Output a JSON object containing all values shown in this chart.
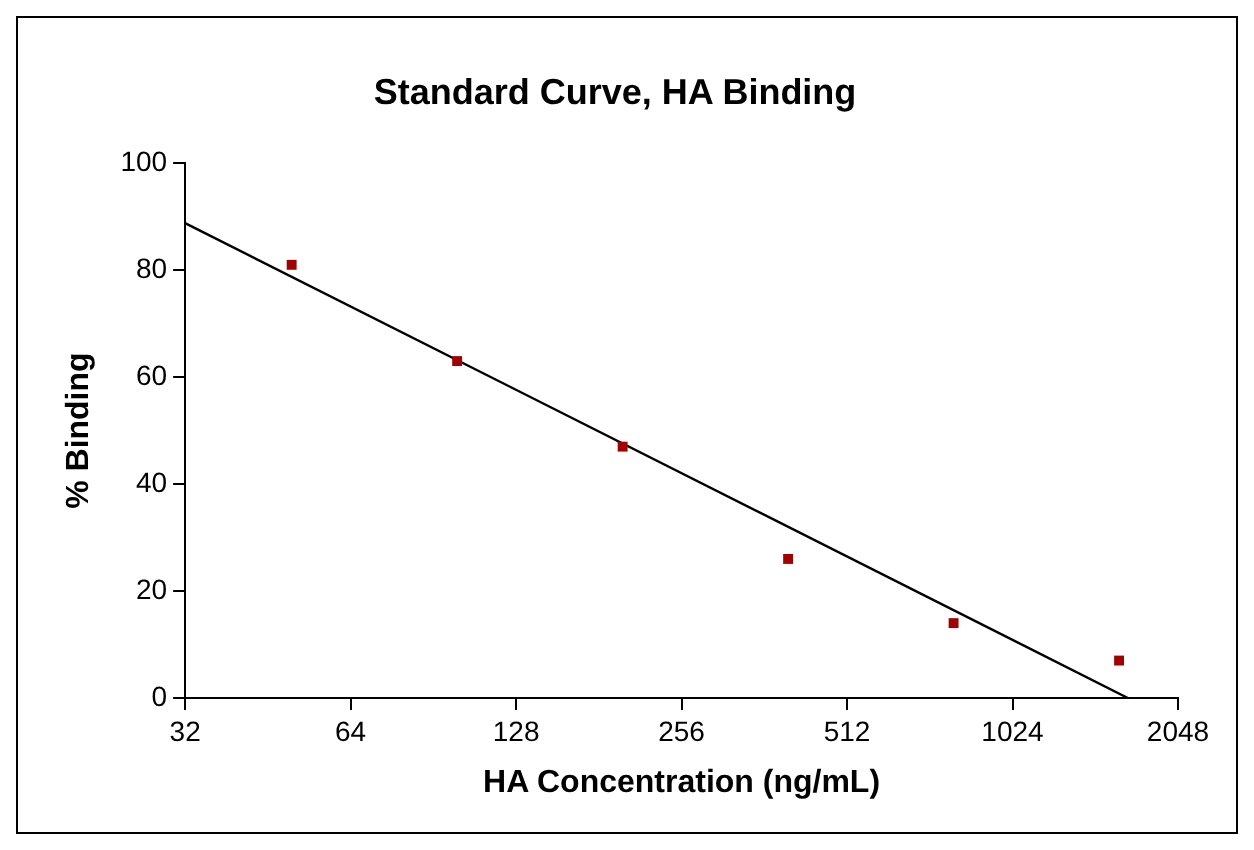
{
  "chart_data": {
    "type": "scatter",
    "title": "Standard Curve, HA Binding",
    "xlabel": "HA Concentration (ng/mL)",
    "ylabel": "% Binding",
    "log": "x",
    "xlim": [
      32,
      2048
    ],
    "xticks": [
      32,
      64,
      128,
      256,
      512,
      1024,
      2048
    ],
    "ylim": [
      0,
      100
    ],
    "yticks": [
      0,
      20,
      40,
      60,
      80,
      100
    ],
    "grid": false,
    "legend": false,
    "series": [
      {
        "color": "#a00000",
        "marker": "square",
        "x": [
          50,
          100,
          200,
          400,
          800,
          1600
        ],
        "values": [
          81,
          63,
          47,
          26,
          14,
          7
        ]
      },
      {
        "type": "line",
        "color": "#000000",
        "marker": "none",
        "x": [
          32,
          1660
        ],
        "values": [
          88.8,
          0
        ]
      }
    ]
  }
}
